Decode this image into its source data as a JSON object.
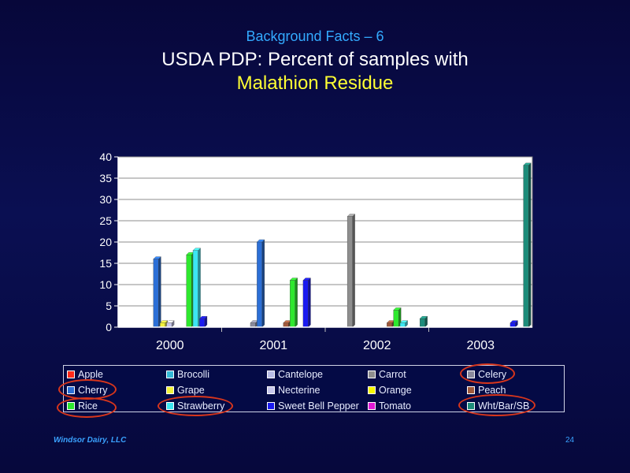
{
  "slide": {
    "subtitle": "Background Facts – 6",
    "title_line1": "USDA PDP: Percent of samples with",
    "title_line2": "Malathion Residue",
    "footer_left": "Windsor Dairy, LLC",
    "page_number": "24"
  },
  "chart_data": {
    "type": "bar",
    "title": "",
    "xlabel": "",
    "ylabel": "",
    "ylim": [
      0,
      40
    ],
    "yticks": [
      0,
      5,
      10,
      15,
      20,
      25,
      30,
      35,
      40
    ],
    "categories": [
      "2000",
      "2001",
      "2002",
      "2003"
    ],
    "grid": true,
    "legend_placement": "bottom",
    "series": [
      {
        "name": "Apple",
        "color": "#ff2a1a",
        "values": [
          0,
          0,
          0,
          0
        ]
      },
      {
        "name": "Brocolli",
        "color": "#33b8d6",
        "values": [
          0,
          0,
          0,
          0
        ]
      },
      {
        "name": "Cantelope",
        "color": "#b9bde6",
        "values": [
          0,
          0,
          0,
          0
        ]
      },
      {
        "name": "Carrot",
        "color": "#8e8e8e",
        "values": [
          0,
          0,
          26,
          0
        ]
      },
      {
        "name": "Celery",
        "color": "#8a8a9c",
        "values": [
          0,
          1,
          0,
          0
        ]
      },
      {
        "name": "Cherry",
        "color": "#2c6fd6",
        "values": [
          16,
          20,
          0,
          0
        ]
      },
      {
        "name": "Grape",
        "color": "#f2f23c",
        "values": [
          1,
          0,
          0,
          0
        ]
      },
      {
        "name": "Necterine",
        "color": "#c8c8ec",
        "values": [
          1,
          0,
          0,
          0
        ]
      },
      {
        "name": "Orange",
        "color": "#f7f700",
        "values": [
          0,
          0,
          0,
          0
        ]
      },
      {
        "name": "Peach",
        "color": "#a05a3c",
        "values": [
          0,
          1,
          1,
          0
        ]
      },
      {
        "name": "Rice",
        "color": "#2ee82e",
        "values": [
          17,
          11,
          4,
          0
        ]
      },
      {
        "name": "Strawberry",
        "color": "#3ce6f2",
        "values": [
          18,
          0,
          1,
          0
        ]
      },
      {
        "name": "Sweet Bell Pepper",
        "color": "#1a1af0",
        "values": [
          2,
          11,
          0,
          1
        ]
      },
      {
        "name": "Tomato",
        "color": "#e01ad6",
        "values": [
          0,
          0,
          0,
          0
        ]
      },
      {
        "name": "Wht/Bar/SB",
        "color": "#1e8c7a",
        "values": [
          0,
          0,
          2,
          38
        ]
      }
    ]
  }
}
